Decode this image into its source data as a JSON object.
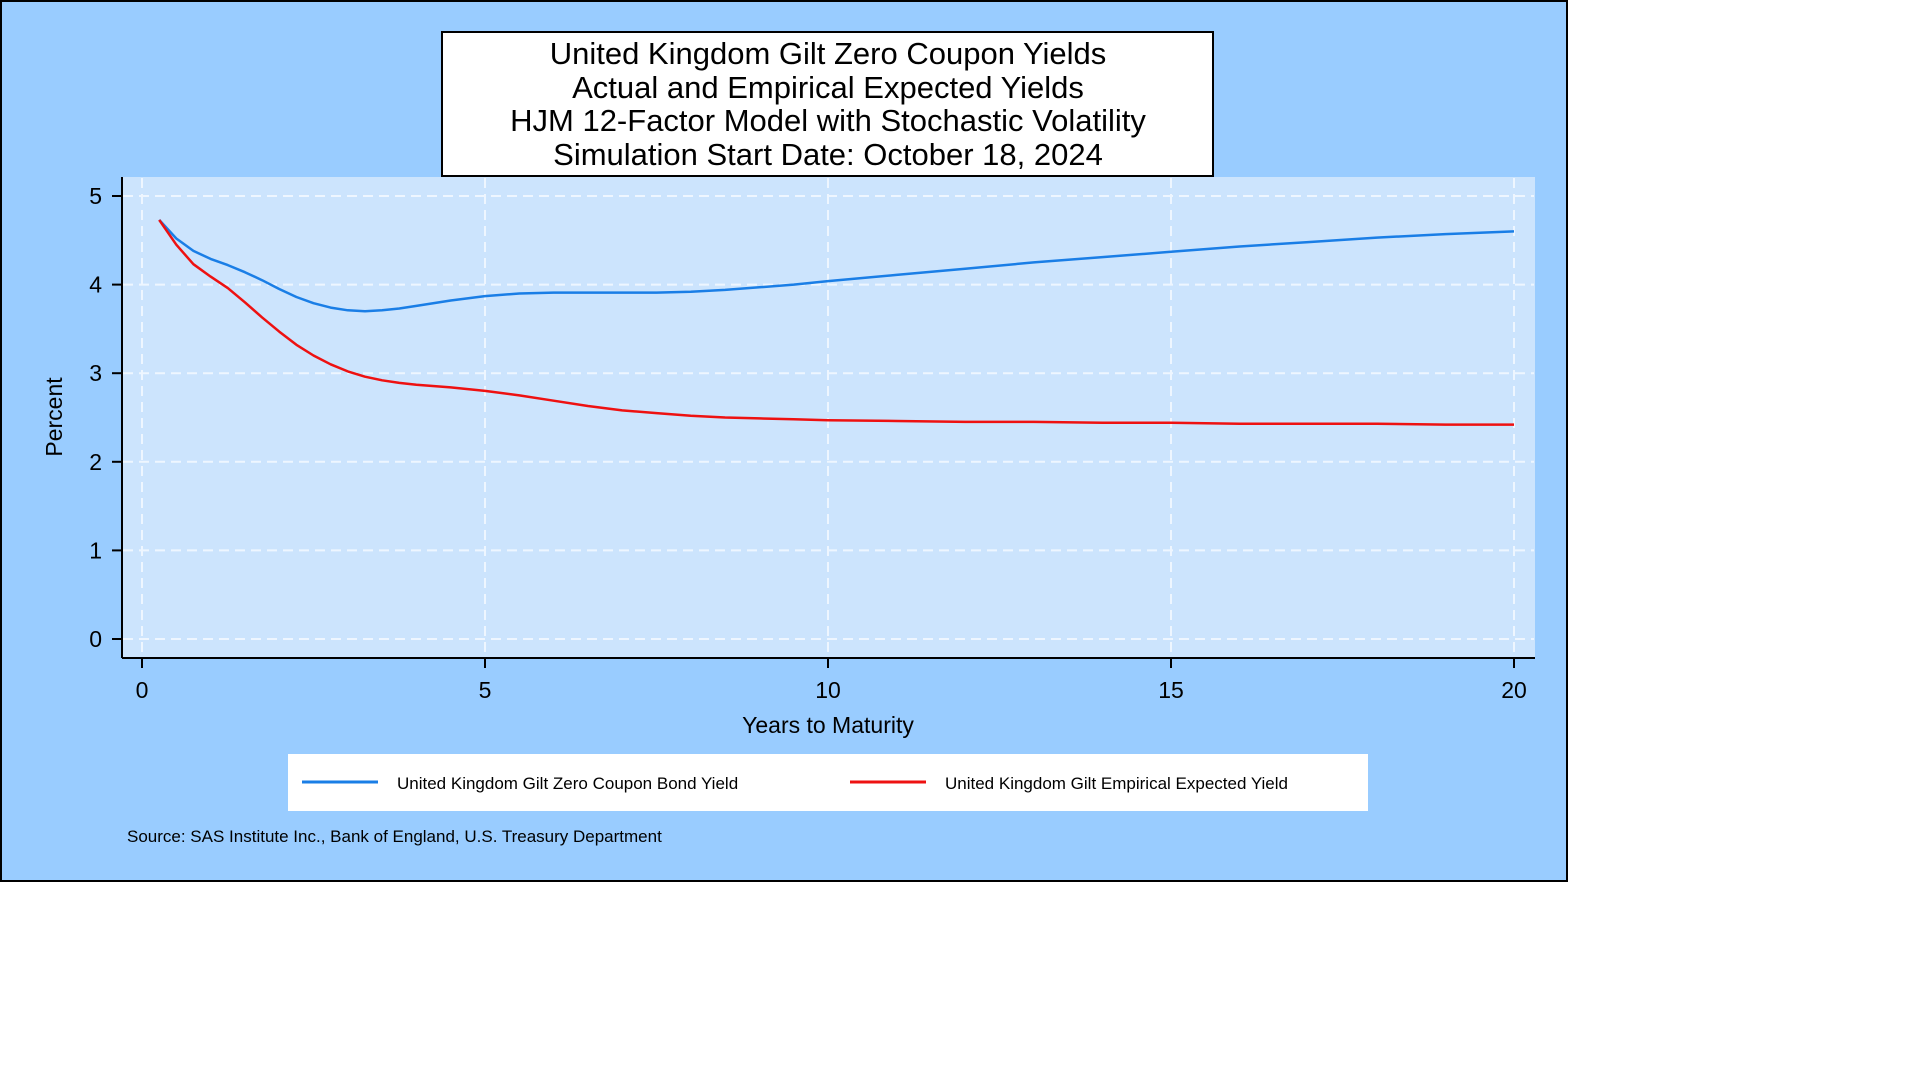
{
  "chart_data": {
    "type": "line",
    "title": [
      "United Kingdom Gilt Zero Coupon Yields",
      "Actual and Empirical Expected Yields",
      "HJM 12-Factor Model with Stochastic Volatility",
      "Simulation Start Date: October 18, 2024"
    ],
    "xlabel": "Years to Maturity",
    "ylabel": "Percent",
    "xlim": [
      0,
      20
    ],
    "ylim": [
      0,
      5
    ],
    "xticks": [
      0,
      5,
      10,
      15,
      20
    ],
    "yticks": [
      0,
      1,
      2,
      3,
      4,
      5
    ],
    "grid": true,
    "legend_position": "bottom",
    "x": [
      0.25,
      0.5,
      0.75,
      1,
      1.25,
      1.5,
      1.75,
      2,
      2.25,
      2.5,
      2.75,
      3,
      3.25,
      3.5,
      3.75,
      4,
      4.5,
      5,
      5.5,
      6,
      6.5,
      7,
      7.5,
      8,
      8.5,
      9,
      9.5,
      10,
      11,
      12,
      13,
      14,
      15,
      16,
      17,
      18,
      19,
      20
    ],
    "series": [
      {
        "name": "United Kingdom Gilt Zero Coupon Bond Yield",
        "color": "#1a7ee6",
        "values": [
          4.73,
          4.52,
          4.38,
          4.29,
          4.22,
          4.14,
          4.05,
          3.95,
          3.86,
          3.79,
          3.74,
          3.71,
          3.7,
          3.71,
          3.73,
          3.76,
          3.82,
          3.87,
          3.9,
          3.91,
          3.91,
          3.91,
          3.91,
          3.92,
          3.94,
          3.97,
          4.0,
          4.04,
          4.11,
          4.18,
          4.25,
          4.31,
          4.37,
          4.43,
          4.48,
          4.53,
          4.57,
          4.6
        ]
      },
      {
        "name": "United Kingdom Gilt Empirical Expected Yield",
        "color": "#ee1111",
        "values": [
          4.73,
          4.45,
          4.23,
          4.09,
          3.96,
          3.8,
          3.63,
          3.47,
          3.32,
          3.2,
          3.1,
          3.02,
          2.96,
          2.92,
          2.89,
          2.87,
          2.84,
          2.8,
          2.75,
          2.69,
          2.63,
          2.58,
          2.55,
          2.52,
          2.5,
          2.49,
          2.48,
          2.47,
          2.46,
          2.45,
          2.45,
          2.44,
          2.44,
          2.43,
          2.43,
          2.43,
          2.42,
          2.42
        ]
      }
    ],
    "source": "Source: SAS Institute Inc., Bank of England, U.S. Treasury Department",
    "colors": {
      "frame_bg": "#99ccff",
      "plot_bg": "#cce4fd",
      "grid": "#eef6ff",
      "border": "#000000"
    }
  }
}
